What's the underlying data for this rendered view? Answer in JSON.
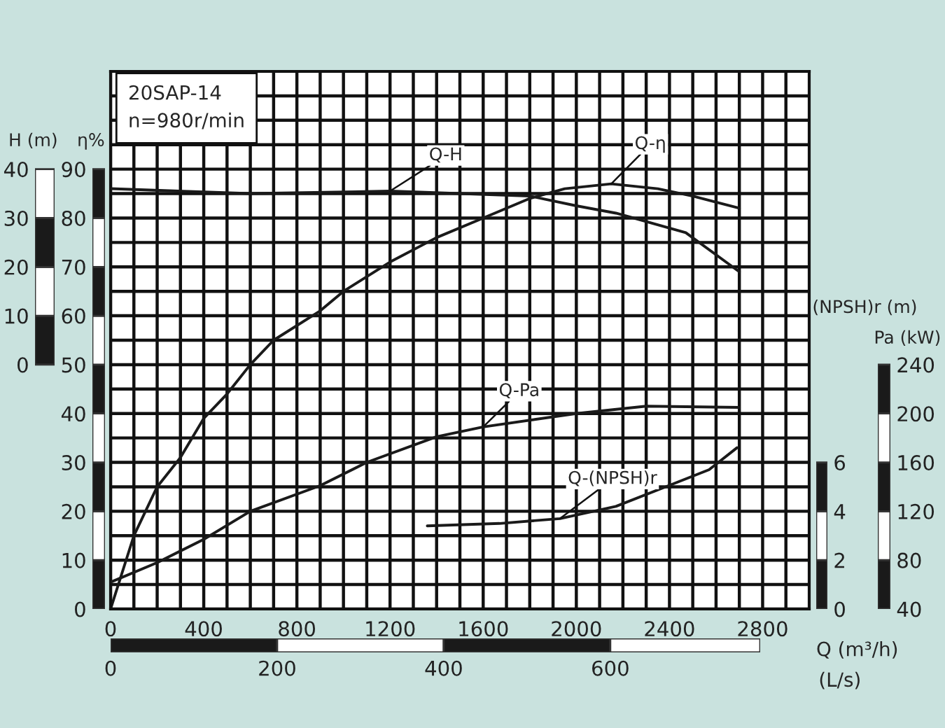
{
  "chart_data": [
    {
      "type": "line",
      "annotations": [
        "20SAP-14",
        "n=980r/min"
      ],
      "xlabel": "Q (m³/h)",
      "x2label": "(L/s)",
      "ylabel": "η%",
      "y2label": "H (m)",
      "y3label": "(NPSH)r (m)",
      "xlim": [
        0,
        3000
      ],
      "xticks": [
        0,
        {
          "value": 100,
          "label": null
        },
        {
          "value": 200,
          "label": null
        },
        {
          "value": 300,
          "label": null
        },
        400,
        {
          "value": 500,
          "label": null
        },
        {
          "value": 600,
          "label": null
        },
        {
          "value": 700,
          "label": null
        },
        800,
        {
          "value": 900,
          "label": null
        },
        {
          "value": 1000,
          "label": null
        },
        {
          "value": 1100,
          "label": null
        },
        1200,
        {
          "value": 1300,
          "label": null
        },
        {
          "value": 1400,
          "label": null
        },
        {
          "value": 1500,
          "label": null
        },
        1600,
        {
          "value": 1700,
          "label": null
        },
        {
          "value": 1800,
          "label": null
        },
        {
          "value": 1900,
          "label": null
        },
        2000,
        {
          "value": 2100,
          "label": null
        },
        {
          "value": 2200,
          "label": null
        },
        {
          "value": 2300,
          "label": null
        },
        2400,
        {
          "value": 2500,
          "label": null
        },
        {
          "value": 2600,
          "label": null
        },
        {
          "value": 2700,
          "label": null
        },
        2800,
        {
          "value": 2900,
          "label": null
        }
      ],
      "x2lim": [
        0,
        780
      ],
      "x2ticks": [
        0,
        200,
        400,
        600
      ],
      "ylim": [
        0,
        110
      ],
      "yticks": [
        0,
        {
          "value": 5,
          "label": null
        },
        10,
        {
          "value": 15,
          "label": null
        },
        20,
        {
          "value": 25,
          "label": null
        },
        30,
        {
          "value": 35,
          "label": null
        },
        40,
        {
          "value": 45,
          "label": null
        },
        50,
        {
          "value": 55,
          "label": null
        },
        60,
        {
          "value": 65,
          "label": null
        },
        70,
        {
          "value": 75,
          "label": null
        },
        80,
        {
          "value": 85,
          "label": null
        },
        90,
        {
          "value": 95,
          "label": null
        },
        {
          "value": 100,
          "label": null
        },
        {
          "value": 105,
          "label": null
        }
      ],
      "y2lim": [
        -50,
        60
      ],
      "y2ticks": [
        0,
        10,
        20,
        30,
        40
      ],
      "y3lim": [
        0,
        22
      ],
      "y3ticks": [
        0,
        2,
        4,
        6
      ],
      "grid": true,
      "series": [
        {
          "name": "Q-H",
          "axis": "y2",
          "color": "#1a1a1a",
          "x": [
            0,
            600,
            1200,
            1800,
            2000,
            2170,
            2470,
            2700
          ],
          "values": [
            36,
            35,
            35.5,
            34.5,
            32.5,
            31,
            27,
            19
          ]
        },
        {
          "name": "Q-η",
          "color": "#1a1a1a",
          "x": [
            0,
            100,
            200,
            300,
            400,
            500,
            600,
            700,
            900,
            1000,
            1200,
            1400,
            1600,
            1800,
            1950,
            2150,
            2350,
            2500,
            2700
          ],
          "values": [
            0,
            15,
            25,
            31,
            39,
            44,
            50,
            55,
            61,
            65,
            71,
            76,
            80,
            84,
            86,
            87,
            86,
            84.5,
            82
          ]
        },
        {
          "name": "Q-(NPSH)r",
          "axis": "y3",
          "color": "#1a1a1a",
          "x": [
            1360,
            1670,
            1930,
            2170,
            2410,
            2570,
            2690
          ],
          "values": [
            3.4,
            3.5,
            3.7,
            4.2,
            5.1,
            5.7,
            6.6
          ]
        }
      ]
    },
    {
      "type": "line",
      "ylabel": "Pa (kW)",
      "xlim": [
        0,
        3000
      ],
      "ylim": [
        40,
        480
      ],
      "yticks": [
        40,
        80,
        120,
        160,
        200,
        240
      ],
      "tick_labels": "y",
      "series": [
        {
          "name": "Q-Pa",
          "color": "#1a1a1a",
          "x": [
            0,
            200,
            400,
            600,
            900,
            1100,
            1400,
            1600,
            2000,
            2300,
            2700
          ],
          "values": [
            62,
            78,
            97,
            120,
            141,
            160,
            181,
            189,
            200,
            206,
            205
          ]
        }
      ]
    }
  ]
}
